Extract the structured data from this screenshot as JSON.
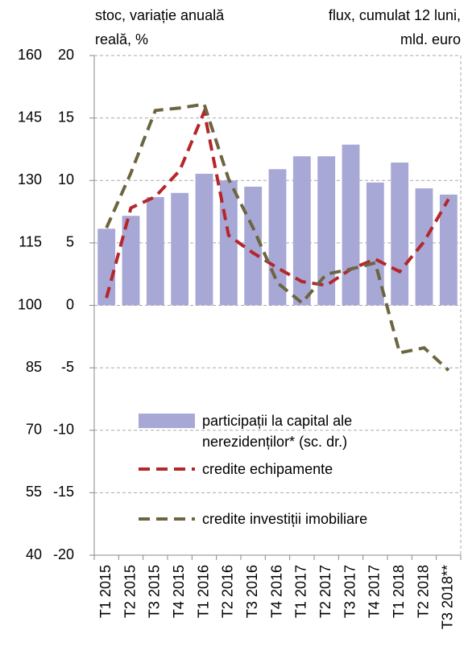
{
  "chart_data": {
    "type": "bar-line",
    "ylabel": "stoc, variație anuală reală, %",
    "y2label": "flux, cumulat 12 luni, mld. euro",
    "categories": [
      "T1 2015",
      "T2 2015",
      "T3 2015",
      "T4 2015",
      "T1 2016",
      "T2 2016",
      "T3 2016",
      "T4 2016",
      "T1 2017",
      "T2 2017",
      "T3 2017",
      "T4 2017",
      "T1 2018",
      "T2 2018",
      "T3 2018**"
    ],
    "ylim": [
      -20,
      20
    ],
    "yticks": [
      -20,
      -15,
      -10,
      -5,
      0,
      5,
      10,
      15,
      20
    ],
    "y2lim": [
      40,
      160
    ],
    "y2ticks": [
      40,
      55,
      70,
      85,
      100,
      115,
      130,
      145,
      160
    ],
    "grid": true,
    "series": [
      {
        "name": "participații la capital ale nerezidenților* (sc. dr.)",
        "color": "#a8a8d6",
        "kind": "bar",
        "axis": "y2",
        "values": [
          118.4,
          121.5,
          126,
          127,
          131.6,
          130,
          128.5,
          132.7,
          135.8,
          135.8,
          138.6,
          129.5,
          134.3,
          128.1,
          126.6
        ]
      },
      {
        "name": "credite echipamente",
        "color": "#b5262b",
        "kind": "line",
        "values": [
          0.6,
          7.8,
          8.7,
          10.8,
          15.5,
          5.6,
          4.2,
          3.0,
          1.9,
          1.6,
          2.9,
          3.7,
          2.7,
          5.1,
          8.5
        ]
      },
      {
        "name": "credite investiții imobiliare",
        "color": "#6b6540",
        "kind": "line",
        "values": [
          6.2,
          10.6,
          15.6,
          15.8,
          16.1,
          10.1,
          6.2,
          1.8,
          0.2,
          2.5,
          2.9,
          3.4,
          -3.8,
          -3.4,
          -5.2
        ]
      }
    ]
  }
}
